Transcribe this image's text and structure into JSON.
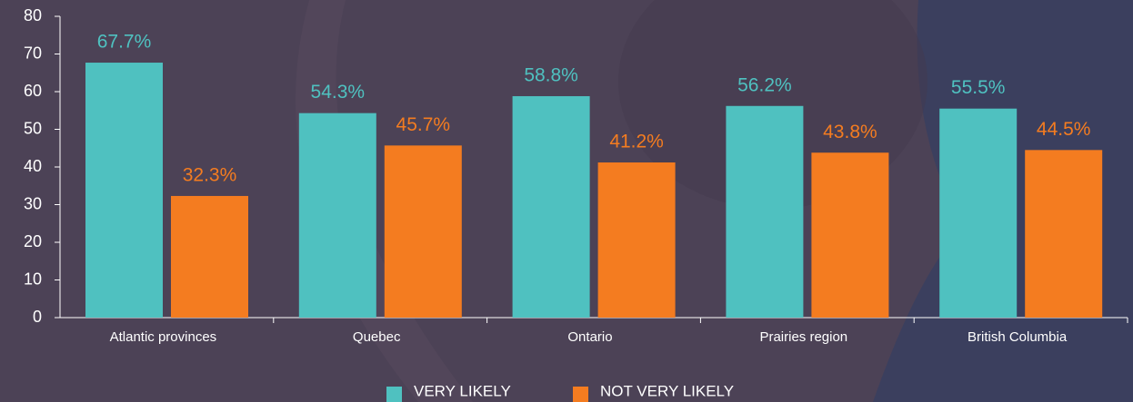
{
  "chart_data": {
    "type": "bar",
    "categories": [
      "Atlantic provinces",
      "Quebec",
      "Ontario",
      "Prairies region",
      "British Columbia"
    ],
    "series": [
      {
        "name": "VERY LIKELY",
        "color": "#4fc1c0",
        "values": [
          67.7,
          54.3,
          58.8,
          56.2,
          55.5
        ],
        "value_labels": [
          "67.7%",
          "54.3%",
          "58.8%",
          "56.2%",
          "55.5%"
        ]
      },
      {
        "name": "NOT VERY LIKELY",
        "color": "#f47c20",
        "values": [
          32.3,
          45.7,
          41.2,
          43.8,
          44.5
        ],
        "value_labels": [
          "32.3%",
          "45.7%",
          "41.2%",
          "43.8%",
          "44.5%"
        ]
      }
    ],
    "ylim": [
      0,
      80
    ],
    "yticks": [
      0,
      10,
      20,
      30,
      40,
      50,
      60,
      70,
      80
    ],
    "grid": false,
    "legend": "bottom"
  }
}
